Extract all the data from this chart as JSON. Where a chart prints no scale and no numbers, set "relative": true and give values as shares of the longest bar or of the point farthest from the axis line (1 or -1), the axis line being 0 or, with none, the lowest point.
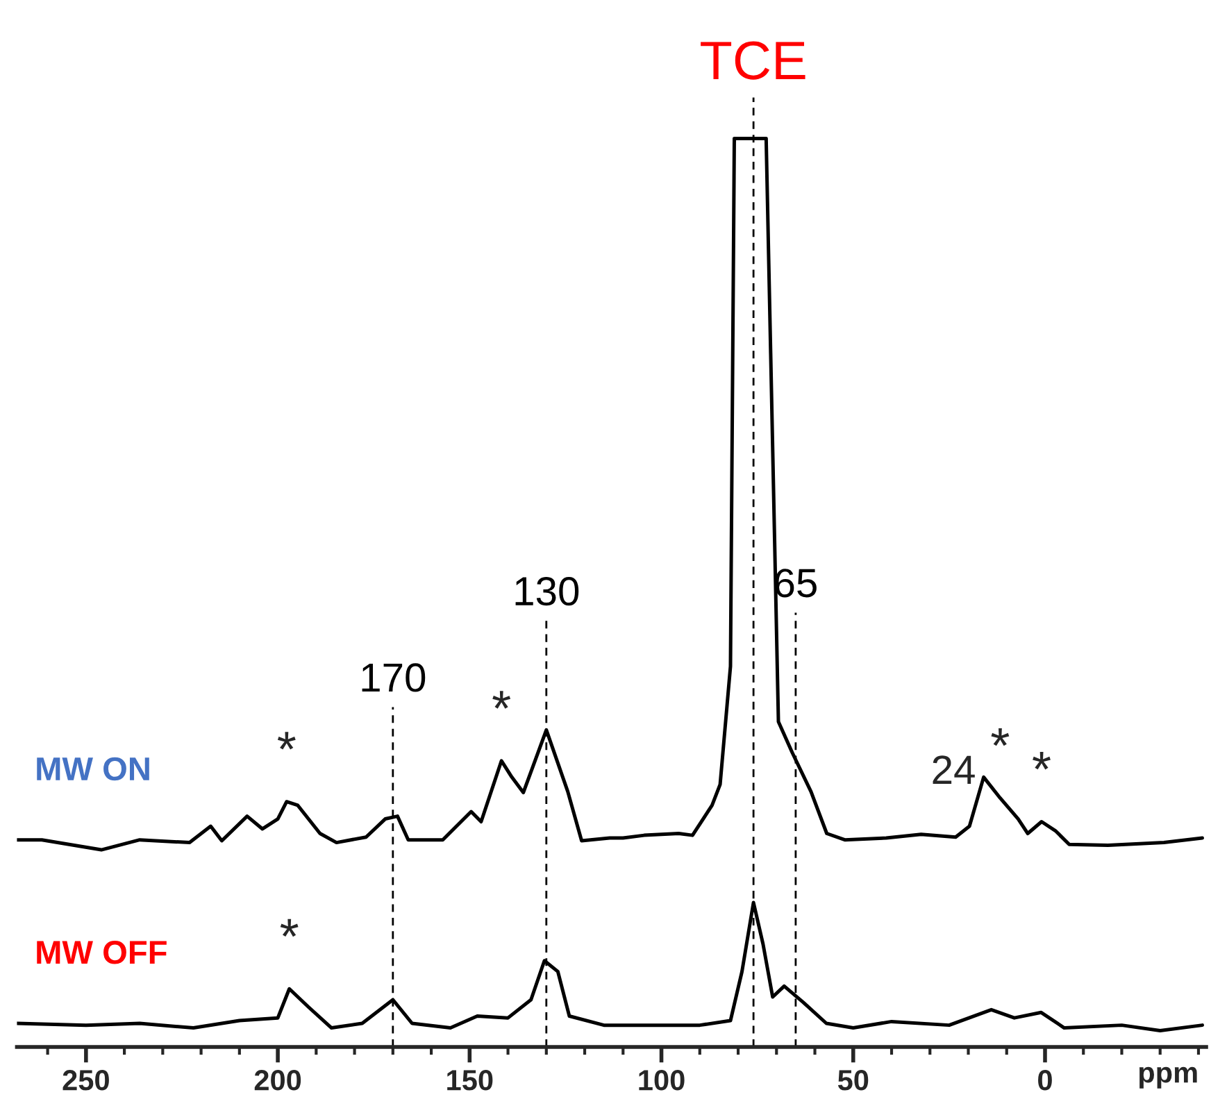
{
  "chart_data": {
    "type": "line",
    "relative": true,
    "xlim": [
      268,
      -42
    ],
    "xlabel": "ppm",
    "grid": false,
    "legend": false,
    "marker": "none",
    "line_style": "solid",
    "xticks": [
      {
        "value": 260,
        "label": null
      },
      {
        "value": 250,
        "label": "250"
      },
      {
        "value": 240,
        "label": null
      },
      {
        "value": 230,
        "label": null
      },
      {
        "value": 220,
        "label": null
      },
      {
        "value": 210,
        "label": null
      },
      {
        "value": 200,
        "label": "200"
      },
      {
        "value": 190,
        "label": null
      },
      {
        "value": 180,
        "label": null
      },
      {
        "value": 170,
        "label": null
      },
      {
        "value": 160,
        "label": null
      },
      {
        "value": 150,
        "label": "150"
      },
      {
        "value": 140,
        "label": null
      },
      {
        "value": 130,
        "label": null
      },
      {
        "value": 120,
        "label": null
      },
      {
        "value": 110,
        "label": null
      },
      {
        "value": 100,
        "label": "100"
      },
      {
        "value": 90,
        "label": null
      },
      {
        "value": 80,
        "label": null
      },
      {
        "value": 70,
        "label": null
      },
      {
        "value": 60,
        "label": null
      },
      {
        "value": 50,
        "label": "50"
      },
      {
        "value": 40,
        "label": null
      },
      {
        "value": 30,
        "label": null
      },
      {
        "value": 20,
        "label": null
      },
      {
        "value": 10,
        "label": null
      },
      {
        "value": 0,
        "label": "0"
      },
      {
        "value": -10,
        "label": null
      },
      {
        "value": -20,
        "label": null
      },
      {
        "value": -30,
        "label": null
      },
      {
        "value": -40,
        "label": null
      }
    ],
    "series": [
      {
        "name": "MW ON",
        "color": "#000000",
        "x": [
          268,
          261.5,
          246,
          236,
          223,
          217.5,
          214.6,
          208,
          204,
          200,
          197.7,
          194.8,
          189,
          184.7,
          177,
          172,
          168.8,
          166,
          157,
          149.6,
          147,
          141.7,
          139,
          136,
          130,
          124.4,
          120.8,
          113.5,
          110,
          104.5,
          95.5,
          91.9,
          86.8,
          84.7,
          82,
          81,
          72.7,
          69.5,
          65.9,
          61,
          56.9,
          52.2,
          41.4,
          32.3,
          23.3,
          19.7,
          16,
          11.7,
          7,
          4.5,
          0.9,
          -2.7,
          -6.3,
          -16.4,
          -31,
          -41
        ],
        "values": [
          0.228,
          0.228,
          0.217,
          0.228,
          0.225,
          0.243,
          0.227,
          0.254,
          0.24,
          0.251,
          0.27,
          0.266,
          0.235,
          0.225,
          0.231,
          0.251,
          0.254,
          0.228,
          0.228,
          0.259,
          0.248,
          0.315,
          0.297,
          0.28,
          0.349,
          0.281,
          0.227,
          0.23,
          0.23,
          0.233,
          0.235,
          0.233,
          0.266,
          0.289,
          0.419,
          1,
          1,
          0.358,
          0.324,
          0.281,
          0.235,
          0.228,
          0.23,
          0.234,
          0.231,
          0.243,
          0.297,
          0.274,
          0.251,
          0.235,
          0.248,
          0.238,
          0.223,
          0.222,
          0.225,
          0.23
        ]
      },
      {
        "name": "MW OFF",
        "color": "#000000",
        "x": [
          268,
          250,
          236,
          222,
          210,
          200,
          197,
          192,
          186,
          178,
          170,
          165,
          155,
          148,
          140,
          134,
          130.5,
          127,
          124,
          115,
          100,
          90,
          82,
          79,
          76,
          73.5,
          71,
          68,
          63,
          57,
          50,
          40,
          25,
          14,
          8,
          1,
          -5,
          -20,
          -30,
          -41
        ],
        "values": [
          0.026,
          0.024,
          0.026,
          0.021,
          0.029,
          0.032,
          0.064,
          0.044,
          0.021,
          0.026,
          0.052,
          0.026,
          0.021,
          0.034,
          0.032,
          0.052,
          0.095,
          0.083,
          0.034,
          0.024,
          0.024,
          0.024,
          0.029,
          0.083,
          0.159,
          0.113,
          0.055,
          0.067,
          0.049,
          0.026,
          0.021,
          0.028,
          0.024,
          0.041,
          0.032,
          0.038,
          0.021,
          0.024,
          0.018,
          0.024
        ]
      }
    ],
    "ref_lines": [
      {
        "axis": "x",
        "value": 170,
        "label": "170",
        "line_style": "dashed",
        "color": "#000000"
      },
      {
        "axis": "x",
        "value": 130,
        "label": "130",
        "line_style": "dashed",
        "color": "#000000"
      },
      {
        "axis": "x",
        "value": 76,
        "label": "TCE",
        "line_style": "dashed",
        "color": "#000000"
      },
      {
        "axis": "x",
        "value": 65,
        "label": "65",
        "line_style": "dashed",
        "color": "#000000"
      }
    ],
    "annotations": [
      {
        "text": "*",
        "x": 197.7,
        "y": 0.27
      },
      {
        "text": "*",
        "x": 141.7,
        "y": 0.315
      },
      {
        "text": "24",
        "x": 16,
        "y": 0.297
      },
      {
        "text": "*",
        "x": 11.7,
        "y": 0.274
      },
      {
        "text": "*",
        "x": 0.9,
        "y": 0.248
      },
      {
        "text": "*",
        "x": 197,
        "y": 0.064
      }
    ]
  }
}
